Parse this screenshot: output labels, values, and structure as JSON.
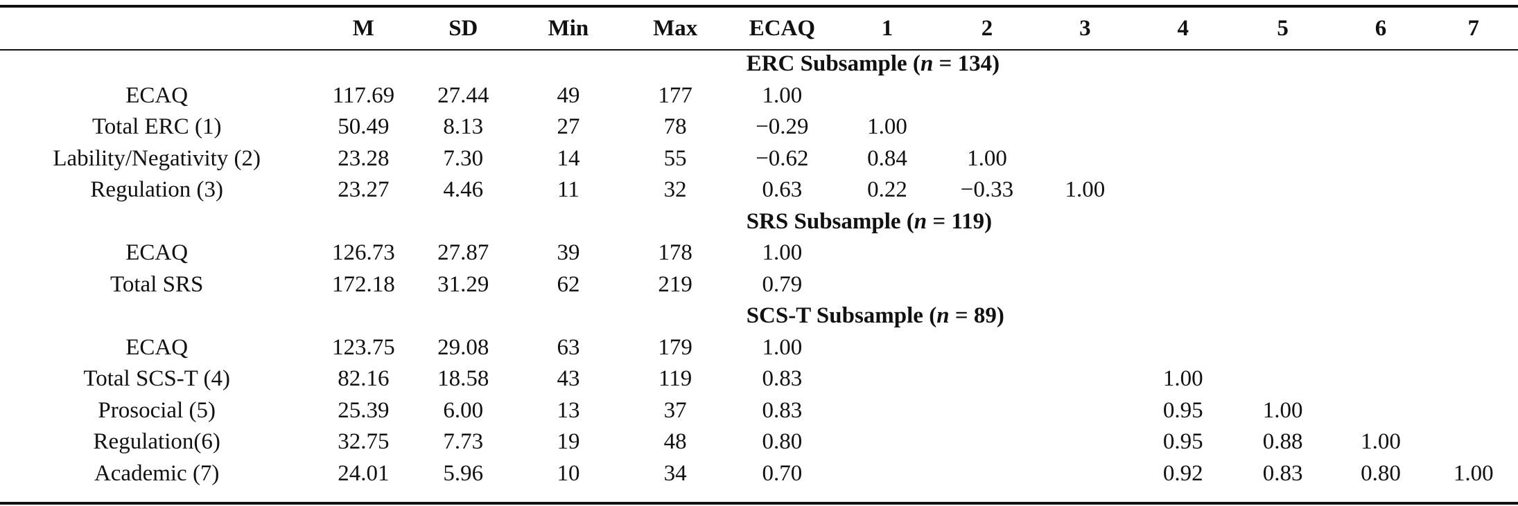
{
  "columns": [
    "",
    "M",
    "SD",
    "Min",
    "Max",
    "ECAQ",
    "1",
    "2",
    "3",
    "4",
    "5",
    "6",
    "7"
  ],
  "sections": [
    {
      "title_prefix": "ERC Subsample (",
      "title_n": "n",
      "title_suffix": " = 134)",
      "rows": [
        {
          "label": "ECAQ",
          "cells": [
            "117.69",
            "27.44",
            "49",
            "177",
            "1.00",
            "",
            "",
            "",
            "",
            "",
            "",
            ""
          ]
        },
        {
          "label": "Total ERC (1)",
          "cells": [
            "50.49",
            "8.13",
            "27",
            "78",
            "−0.29",
            "1.00",
            "",
            "",
            "",
            "",
            "",
            ""
          ]
        },
        {
          "label": "Lability/Negativity (2)",
          "cells": [
            "23.28",
            "7.30",
            "14",
            "55",
            "−0.62",
            "0.84",
            "1.00",
            "",
            "",
            "",
            "",
            ""
          ]
        },
        {
          "label": "Regulation (3)",
          "cells": [
            "23.27",
            "4.46",
            "11",
            "32",
            "0.63",
            "0.22",
            "−0.33",
            "1.00",
            "",
            "",
            "",
            ""
          ]
        }
      ]
    },
    {
      "title_prefix": "SRS Subsample (",
      "title_n": "n",
      "title_suffix": " = 119)",
      "rows": [
        {
          "label": "ECAQ",
          "cells": [
            "126.73",
            "27.87",
            "39",
            "178",
            "1.00",
            "",
            "",
            "",
            "",
            "",
            "",
            ""
          ]
        },
        {
          "label": "Total SRS",
          "cells": [
            "172.18",
            "31.29",
            "62",
            "219",
            "0.79",
            "",
            "",
            "",
            "",
            "",
            "",
            ""
          ]
        }
      ]
    },
    {
      "title_prefix": "SCS-T Subsample (",
      "title_n": "n",
      "title_suffix": " = 89)",
      "rows": [
        {
          "label": "ECAQ",
          "cells": [
            "123.75",
            "29.08",
            "63",
            "179",
            "1.00",
            "",
            "",
            "",
            "",
            "",
            "",
            ""
          ]
        },
        {
          "label": "Total SCS-T (4)",
          "cells": [
            "82.16",
            "18.58",
            "43",
            "119",
            "0.83",
            "",
            "",
            "",
            "1.00",
            "",
            "",
            ""
          ]
        },
        {
          "label": "Prosocial (5)",
          "cells": [
            "25.39",
            "6.00",
            "13",
            "37",
            "0.83",
            "",
            "",
            "",
            "0.95",
            "1.00",
            "",
            ""
          ]
        },
        {
          "label": "Regulation(6)",
          "cells": [
            "32.75",
            "7.73",
            "19",
            "48",
            "0.80",
            "",
            "",
            "",
            "0.95",
            "0.88",
            "1.00",
            ""
          ]
        },
        {
          "label": "Academic (7)",
          "cells": [
            "24.01",
            "5.96",
            "10",
            "34",
            "0.70",
            "",
            "",
            "",
            "0.92",
            "0.83",
            "0.80",
            "1.00"
          ]
        }
      ]
    }
  ]
}
